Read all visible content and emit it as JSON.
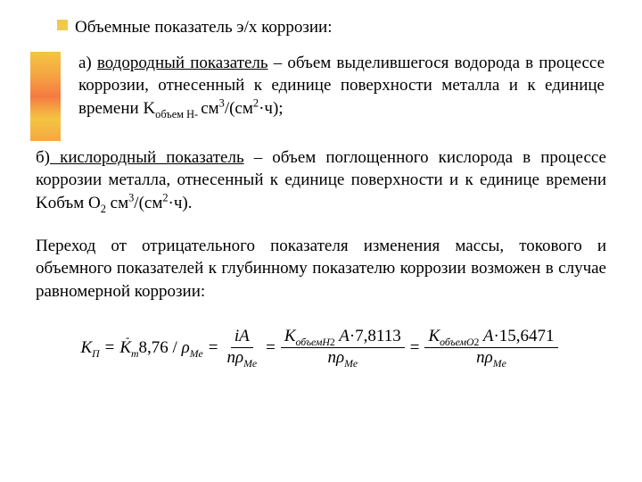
{
  "title": "Объемные показатель э/х коррозии:",
  "section_a": {
    "prefix": "а) ",
    "underlined": "водородный показатель",
    "rest1": " – объем выделившегося водорода в процессе коррозии, отнесенный к единице поверхности металла и к единице времени K",
    "sub1": "объем H- ",
    "unit_top": "см",
    "unit_sup": "3",
    "unit_after": "/(см",
    "unit_sup2": "2",
    "unit_tail": "·ч);"
  },
  "section_b": {
    "prefix": "б)",
    "underlined": " кислородный показатель",
    "rest1": " – объем поглощенного кислорода в процессе коррозии металла, отнесенный к единице поверхности и к единице времени Kобъм O",
    "sub_o": "2",
    "unit1": " см",
    "sup1": "3",
    "mid": "/(см",
    "sup2": "2",
    "tail": "·ч)."
  },
  "transition": "Переход от отрицательного показателя изменения массы, токового и объемного показателей к глубинному показателю коррозии возможен в случае равномерной коррозии:",
  "formula": {
    "Kpi": "K",
    "Kpi_sub": "П",
    "eq": "=",
    "Km": "K",
    "Km_sub": "m",
    "num876": "8,76 /",
    "rho": "ρ",
    "me": "Me",
    "iA": "iA",
    "n": "n",
    "KobH": "K",
    "KobH_sub": "объемH",
    "KobH_sub2": "2",
    "A1": "A",
    "c78": "·7,8113",
    "KobO": "K",
    "KobO_sub": "объемO",
    "KobO_sub2": "2",
    "A2": "A",
    "c156": "·15,6471"
  }
}
